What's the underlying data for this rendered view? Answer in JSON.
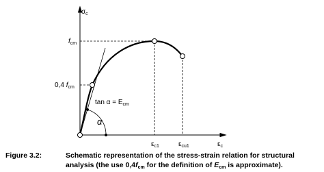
{
  "diagram": {
    "y_axis": {
      "main": "σ",
      "sub": "c"
    },
    "x_axis": {
      "main": "ε",
      "sub": "c"
    },
    "fcm": {
      "main": "f",
      "sub": "cm"
    },
    "fcm04": {
      "prefix": "0,4 ",
      "main": "f",
      "sub": "cm"
    },
    "tangent": {
      "main": "tan α = E",
      "sub": "cm"
    },
    "angle": "α",
    "eps_c1": {
      "main": "ε",
      "sub": "c1"
    },
    "eps_cu1": {
      "main": "ε",
      "sub": "cu1"
    }
  },
  "caption": {
    "number": "Figure 3.2:",
    "line1": "Schematic representation of the stress-strain relation for structural",
    "line2": [
      "analysis (the use 0,4",
      "f",
      "cm",
      " for the definition of ",
      "E",
      "cm",
      " is approximate)."
    ]
  }
}
